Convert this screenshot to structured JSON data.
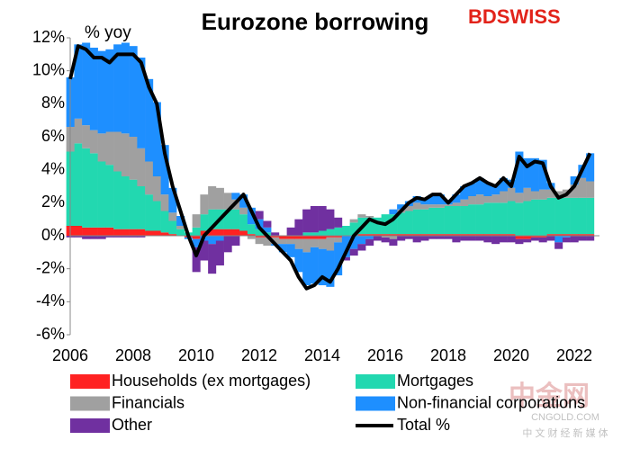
{
  "chart_data": {
    "type": "bar",
    "stacked": true,
    "title": "Eurozone borrowing",
    "annotation": "% yoy",
    "x": [
      2006,
      2006.25,
      2006.5,
      2006.75,
      2007,
      2007.25,
      2007.5,
      2007.75,
      2008,
      2008.25,
      2008.5,
      2008.75,
      2009,
      2009.25,
      2009.5,
      2009.75,
      2010,
      2010.25,
      2010.5,
      2010.75,
      2011,
      2011.25,
      2011.5,
      2011.75,
      2012,
      2012.25,
      2012.5,
      2012.75,
      2013,
      2013.25,
      2013.5,
      2013.75,
      2014,
      2014.25,
      2014.5,
      2014.75,
      2015,
      2015.25,
      2015.5,
      2015.75,
      2016,
      2016.25,
      2016.5,
      2016.75,
      2017,
      2017.25,
      2017.5,
      2017.75,
      2018,
      2018.25,
      2018.5,
      2018.75,
      2019,
      2019.25,
      2019.5,
      2019.75,
      2020,
      2020.25,
      2020.5,
      2020.75,
      2021,
      2021.25,
      2021.5,
      2021.75,
      2022,
      2022.25,
      2022.5
    ],
    "series": [
      {
        "name": "Households (ex mortgages)",
        "color": "#ff2222",
        "values": [
          0.6,
          0.6,
          0.5,
          0.5,
          0.5,
          0.5,
          0.4,
          0.4,
          0.4,
          0.4,
          0.3,
          0.3,
          0.2,
          0.1,
          0,
          -0.1,
          -0.2,
          0.3,
          0.4,
          0.4,
          0.4,
          0.4,
          0.3,
          0.1,
          -0.1,
          -0.1,
          -0.1,
          -0.2,
          -0.2,
          -0.2,
          -0.2,
          -0.2,
          -0.2,
          -0.1,
          -0.1,
          0,
          0,
          0.1,
          0.1,
          0.1,
          0.1,
          0.1,
          0.1,
          0.1,
          0.1,
          0.1,
          0.1,
          0.1,
          0.1,
          0.1,
          0.1,
          0.1,
          0.1,
          0.1,
          0.1,
          0.1,
          0.1,
          -0.2,
          -0.2,
          -0.1,
          -0.1,
          0.1,
          0.1,
          0.1,
          0.1,
          0.1,
          0.1
        ]
      },
      {
        "name": "Mortgages",
        "color": "#22d8b0",
        "values": [
          4.5,
          5,
          4.8,
          4.5,
          4,
          3.8,
          3.5,
          3.2,
          3,
          2.6,
          2.2,
          1.8,
          1.3,
          0.8,
          0.4,
          0.2,
          0.5,
          1,
          1.2,
          1.2,
          1.2,
          1.2,
          1,
          0.6,
          0.4,
          0.2,
          0,
          0,
          0,
          0,
          0.2,
          0.2,
          0.3,
          0.4,
          0.5,
          0.6,
          0.8,
          1,
          1,
          1,
          1.2,
          1.2,
          1.3,
          1.4,
          1.5,
          1.5,
          1.6,
          1.6,
          1.7,
          1.7,
          1.7,
          1.8,
          1.8,
          1.9,
          1.9,
          1.9,
          2,
          2,
          2.1,
          2.2,
          2.2,
          2.2,
          2.2,
          2.2,
          2.2,
          2.2,
          2.2
        ]
      },
      {
        "name": "Financials",
        "color": "#a0a0a0",
        "values": [
          1.5,
          1.5,
          1.4,
          1.4,
          1.7,
          2,
          2.4,
          2.6,
          2.6,
          2.3,
          2,
          1.5,
          1,
          0.5,
          0.2,
          0,
          0.8,
          1.2,
          1.4,
          1.3,
          1,
          0.6,
          0.4,
          -0.2,
          -0.4,
          -0.5,
          -0.4,
          -0.3,
          -0.3,
          -0.6,
          -0.8,
          -0.5,
          -0.6,
          -0.8,
          -0.3,
          0,
          0.2,
          0.2,
          0.1,
          0,
          -0.1,
          -0.2,
          0.2,
          0.3,
          0.4,
          0.3,
          0.2,
          0.2,
          0.1,
          0.2,
          0.4,
          0.5,
          0.6,
          0.4,
          0.5,
          0.7,
          0.8,
          0.6,
          0.8,
          0.5,
          0.6,
          0.5,
          0.4,
          0.5,
          0.8,
          1.2,
          1
        ]
      },
      {
        "name": "Non-financial corporations",
        "color": "#1e8fff",
        "values": [
          3,
          4.5,
          5,
          5,
          5,
          5,
          5.3,
          5.5,
          5.5,
          5.5,
          5,
          4.5,
          3,
          1.5,
          0.6,
          -0.1,
          -0.5,
          -0.3,
          -0.5,
          -0.3,
          0,
          0.4,
          0.8,
          1,
          0.6,
          0.3,
          -0.1,
          -0.5,
          -0.8,
          -1.4,
          -2,
          -2.2,
          -2.2,
          -2.2,
          -2,
          -1.3,
          -0.8,
          -0.5,
          -0.2,
          0,
          0,
          0.3,
          0.3,
          0.3,
          0.4,
          0.4,
          0.6,
          0.6,
          0.2,
          0.5,
          0.8,
          0.8,
          1,
          0.8,
          0.6,
          0.8,
          0.5,
          2.5,
          1.8,
          2,
          1.8,
          0.4,
          -0.4,
          -0.1,
          0.5,
          0.8,
          1.7
        ]
      },
      {
        "name": "Other",
        "color": "#7030a0",
        "values": [
          -0.1,
          -0.1,
          -0.2,
          -0.2,
          -0.2,
          -0.1,
          -0.1,
          -0.1,
          -0.1,
          -0.1,
          0,
          0,
          0,
          0,
          0,
          0,
          -1.5,
          -1.2,
          -1.8,
          -1.5,
          -1,
          -0.6,
          0,
          0,
          0.5,
          0.4,
          0.2,
          0,
          0.5,
          1,
          1.4,
          1.6,
          1.5,
          1.2,
          0.6,
          -0.2,
          -0.4,
          -0.4,
          -0.4,
          -0.3,
          -0.3,
          -0.4,
          -0.3,
          -0.2,
          -0.4,
          -0.3,
          -0.2,
          -0.2,
          -0.2,
          -0.4,
          -0.3,
          -0.3,
          -0.3,
          -0.4,
          -0.5,
          -0.4,
          -0.4,
          -0.3,
          -0.2,
          -0.2,
          -0.3,
          -0.3,
          -0.4,
          -0.3,
          -0.4,
          -0.3,
          -0.3
        ]
      },
      {
        "name": "Total %",
        "color": "#000000",
        "type": "line",
        "values": [
          9.5,
          11.5,
          11.3,
          10.8,
          10.8,
          10.5,
          11,
          11,
          11,
          10.5,
          9,
          8,
          5,
          3,
          1.5,
          0,
          -1.2,
          0,
          0.5,
          1,
          1.5,
          2,
          2.5,
          1.5,
          0.5,
          0,
          -0.5,
          -1,
          -1.5,
          -2.5,
          -3.2,
          -3,
          -2.5,
          -2.8,
          -2,
          -1,
          0,
          0.5,
          1,
          0.8,
          0.7,
          1,
          1.5,
          2,
          2.3,
          2.2,
          2.5,
          2.5,
          2,
          2.5,
          3,
          3.2,
          3.5,
          3.2,
          3,
          3.5,
          3,
          4.8,
          4.2,
          4.5,
          4.4,
          3,
          2.3,
          2.5,
          3,
          4,
          5
        ]
      }
    ],
    "xlim": [
      2006,
      2022.8
    ],
    "xticks": [
      2006,
      2008,
      2010,
      2012,
      2014,
      2016,
      2018,
      2020,
      2022
    ],
    "ylim": [
      -6,
      12
    ],
    "yticks": [
      {
        "value": -6,
        "label": "-6%"
      },
      {
        "value": -4,
        "label": "-4%"
      },
      {
        "value": -2,
        "label": "-2%"
      },
      {
        "value": 0,
        "label": "0%"
      },
      {
        "value": 2,
        "label": "2%"
      },
      {
        "value": 4,
        "label": "4%"
      },
      {
        "value": 6,
        "label": "6%"
      },
      {
        "value": 8,
        "label": "8%"
      },
      {
        "value": 10,
        "label": "10%"
      },
      {
        "value": 12,
        "label": "12%"
      }
    ],
    "grid": false,
    "legend": "bottom"
  },
  "logo": {
    "text": "BDSWISS"
  },
  "watermark": {
    "name": "中金网",
    "site": "CNGOLD.COM",
    "slogan": "中 文 财 经 新 媒 体"
  }
}
